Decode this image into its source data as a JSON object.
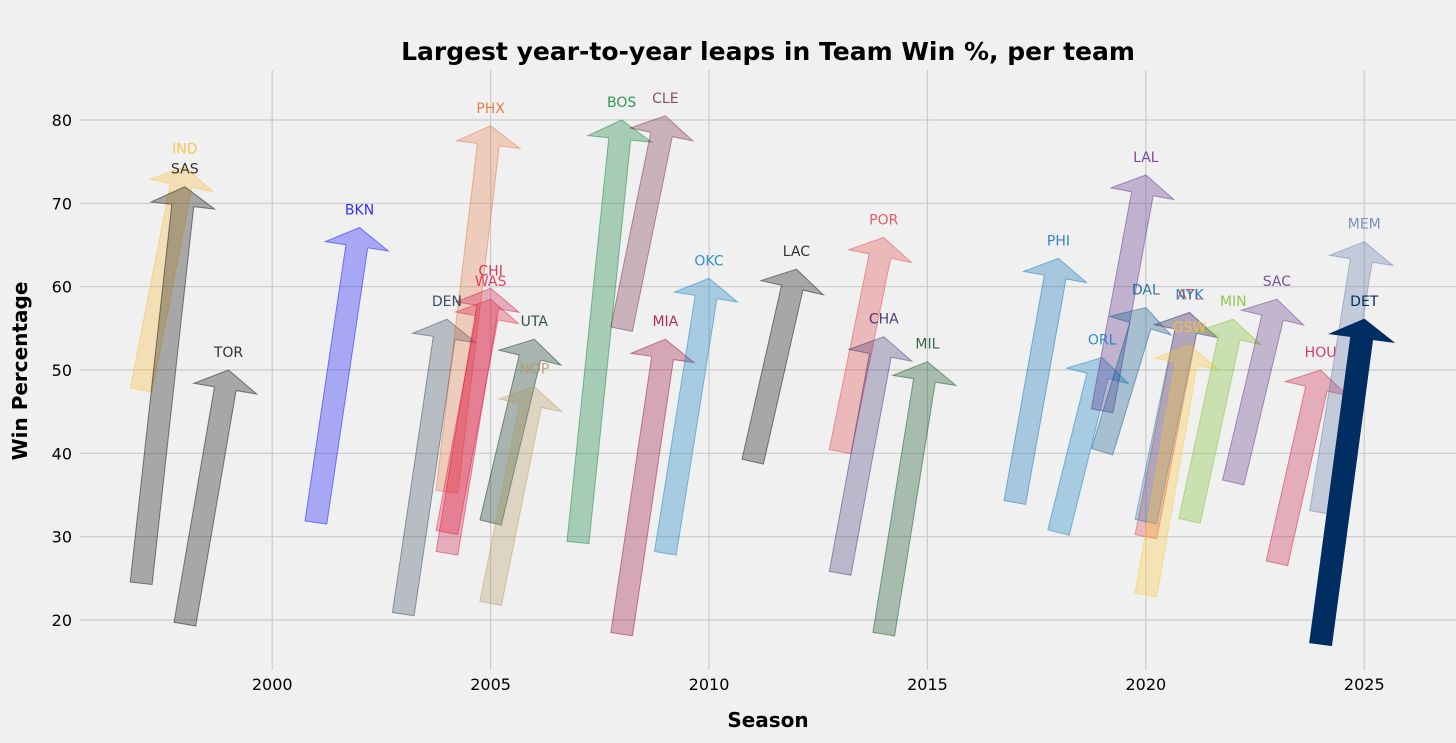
{
  "chart_data": {
    "type": "arrow",
    "title": "Largest year-to-year leaps in Team Win %, per team",
    "xlabel": "Season",
    "ylabel": "Win Percentage",
    "xlim": [
      1995.6,
      2027.1
    ],
    "ylim": [
      14.0,
      86.0
    ],
    "x_ticks": [
      2000,
      2005,
      2010,
      2015,
      2020,
      2025
    ],
    "y_ticks": [
      20,
      30,
      40,
      50,
      60,
      70,
      80
    ],
    "grid": true,
    "series": [
      {
        "team": "IND",
        "color": "#fdbb30",
        "x_start": 1997,
        "y_start": 47.6,
        "x_end": 1998,
        "y_end": 74.4,
        "opacity": 0.3
      },
      {
        "team": "SAS",
        "color": "#000000",
        "x_start": 1997,
        "y_start": 24.4,
        "x_end": 1998,
        "y_end": 72.0,
        "opacity": 0.3
      },
      {
        "team": "TOR",
        "color": "#000000",
        "x_start": 1998,
        "y_start": 19.5,
        "x_end": 1999,
        "y_end": 50.0,
        "opacity": 0.3
      },
      {
        "team": "BKN",
        "color": "#0000ff",
        "x_start": 2001,
        "y_start": 31.7,
        "x_end": 2002,
        "y_end": 67.1,
        "opacity": 0.3
      },
      {
        "team": "DEN",
        "color": "#0e2240",
        "x_start": 2003,
        "y_start": 20.7,
        "x_end": 2004,
        "y_end": 56.1,
        "opacity": 0.25
      },
      {
        "team": "PHX",
        "color": "#e56020",
        "x_start": 2004,
        "y_start": 35.4,
        "x_end": 2005,
        "y_end": 79.3,
        "opacity": 0.25
      },
      {
        "team": "CHI",
        "color": "#ce1141",
        "x_start": 2004,
        "y_start": 28.0,
        "x_end": 2005,
        "y_end": 59.8,
        "opacity": 0.3
      },
      {
        "team": "WAS",
        "color": "#e31837",
        "x_start": 2004,
        "y_start": 30.5,
        "x_end": 2005,
        "y_end": 58.5,
        "opacity": 0.3
      },
      {
        "team": "UTA",
        "color": "#002b1c",
        "x_start": 2005,
        "y_start": 31.7,
        "x_end": 2006,
        "y_end": 53.7,
        "opacity": 0.3
      },
      {
        "team": "NOP",
        "color": "#b4975a",
        "x_start": 2005,
        "y_start": 22.0,
        "x_end": 2006,
        "y_end": 48.0,
        "opacity": 0.3
      },
      {
        "team": "BOS",
        "color": "#007a33",
        "x_start": 2007,
        "y_start": 29.3,
        "x_end": 2008,
        "y_end": 80.0,
        "opacity": 0.3
      },
      {
        "team": "CLE",
        "color": "#6f263d",
        "x_start": 2008,
        "y_start": 54.9,
        "x_end": 2009,
        "y_end": 80.5,
        "opacity": 0.3
      },
      {
        "team": "MIA",
        "color": "#98002e",
        "x_start": 2008,
        "y_start": 18.3,
        "x_end": 2009,
        "y_end": 53.7,
        "opacity": 0.3
      },
      {
        "team": "OKC",
        "color": "#007ac1",
        "x_start": 2009,
        "y_start": 28.0,
        "x_end": 2010,
        "y_end": 61.0,
        "opacity": 0.3
      },
      {
        "team": "LAC",
        "color": "#000000",
        "x_start": 2011,
        "y_start": 39.0,
        "x_end": 2012,
        "y_end": 62.1,
        "opacity": 0.3
      },
      {
        "team": "POR",
        "color": "#e03a3e",
        "x_start": 2013,
        "y_start": 40.2,
        "x_end": 2014,
        "y_end": 65.9,
        "opacity": 0.3
      },
      {
        "team": "CHA",
        "color": "#1d1160",
        "x_start": 2013,
        "y_start": 25.6,
        "x_end": 2014,
        "y_end": 54.0,
        "opacity": 0.25
      },
      {
        "team": "MIL",
        "color": "#00471b",
        "x_start": 2014,
        "y_start": 18.3,
        "x_end": 2015,
        "y_end": 51.0,
        "opacity": 0.3
      },
      {
        "team": "PHI",
        "color": "#006bb6",
        "x_start": 2017,
        "y_start": 34.1,
        "x_end": 2018,
        "y_end": 63.4,
        "opacity": 0.3
      },
      {
        "team": "ORL",
        "color": "#0077c0",
        "x_start": 2018,
        "y_start": 30.5,
        "x_end": 2019,
        "y_end": 51.5,
        "opacity": 0.3
      },
      {
        "team": "LAL",
        "color": "#552583",
        "x_start": 2019,
        "y_start": 45.1,
        "x_end": 2020,
        "y_end": 73.4,
        "opacity": 0.3
      },
      {
        "team": "DAL",
        "color": "#00538c",
        "x_start": 2019,
        "y_start": 40.2,
        "x_end": 2020,
        "y_end": 57.5,
        "opacity": 0.3
      },
      {
        "team": "ATL",
        "color": "#e03a3e",
        "x_start": 2020,
        "y_start": 30.0,
        "x_end": 2021,
        "y_end": 56.9,
        "opacity": 0.3
      },
      {
        "team": "NYK",
        "color": "#006bb6",
        "x_start": 2020,
        "y_start": 31.8,
        "x_end": 2021,
        "y_end": 56.9,
        "opacity": 0.25
      },
      {
        "team": "GSW",
        "color": "#ffc72c",
        "x_start": 2020,
        "y_start": 23.0,
        "x_end": 2021,
        "y_end": 53.0,
        "opacity": 0.3
      },
      {
        "team": "MIN",
        "color": "#78be20",
        "x_start": 2021,
        "y_start": 31.9,
        "x_end": 2022,
        "y_end": 56.1,
        "opacity": 0.3
      },
      {
        "team": "SAC",
        "color": "#5a2d81",
        "x_start": 2022,
        "y_start": 36.5,
        "x_end": 2023,
        "y_end": 58.5,
        "opacity": 0.3
      },
      {
        "team": "HOU",
        "color": "#ce1141",
        "x_start": 2023,
        "y_start": 26.8,
        "x_end": 2024,
        "y_end": 50.0,
        "opacity": 0.3
      },
      {
        "team": "MEM",
        "color": "#5d76a9",
        "x_start": 2024,
        "y_start": 32.9,
        "x_end": 2025,
        "y_end": 65.4,
        "opacity": 0.3
      },
      {
        "team": "DET",
        "color": "#002d62",
        "x_start": 2024,
        "y_start": 17.1,
        "x_end": 2025,
        "y_end": 56.1,
        "opacity": 1.0
      }
    ]
  }
}
